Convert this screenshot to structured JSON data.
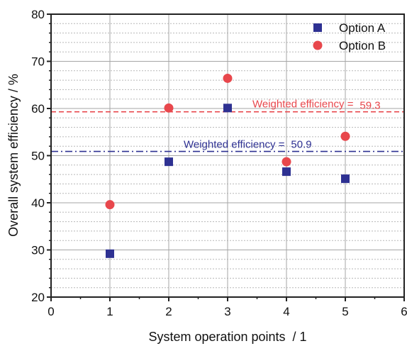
{
  "chart_data": {
    "type": "scatter",
    "title": "",
    "xlabel": "System operation points  / 1",
    "ylabel": "Overall system efficiency / %",
    "xlim": [
      0,
      6
    ],
    "ylim": [
      20,
      80
    ],
    "x_ticks": [
      0,
      1,
      2,
      3,
      4,
      5,
      6
    ],
    "y_ticks": [
      20,
      30,
      40,
      50,
      60,
      70,
      80
    ],
    "x_tick_labels": [
      "0",
      "1",
      "2",
      "3",
      "4",
      "5",
      "6"
    ],
    "y_tick_labels": [
      "20",
      "30",
      "40",
      "50",
      "60",
      "70",
      "80"
    ],
    "grid": true,
    "legend_position": "top-right",
    "series": [
      {
        "name": "Option A",
        "marker": "square",
        "color": "#2e3192",
        "x": [
          1,
          2,
          3,
          4,
          5
        ],
        "y": [
          29.2,
          48.7,
          60.1,
          46.6,
          45.1
        ]
      },
      {
        "name": "Option B",
        "marker": "circle",
        "color": "#e8474c",
        "x": [
          1,
          2,
          3,
          4,
          5
        ],
        "y": [
          39.6,
          60.1,
          66.4,
          48.7,
          54.1
        ]
      }
    ],
    "reference_lines": [
      {
        "label_text": "Weighted efficiency =",
        "value_text": "59.3",
        "value": 59.3,
        "color": "#e8474c",
        "style": "dashed"
      },
      {
        "label_text": "Weighted efficiency =",
        "value_text": "50.9",
        "value": 50.9,
        "color": "#2e3192",
        "style": "dash-dot"
      }
    ]
  }
}
